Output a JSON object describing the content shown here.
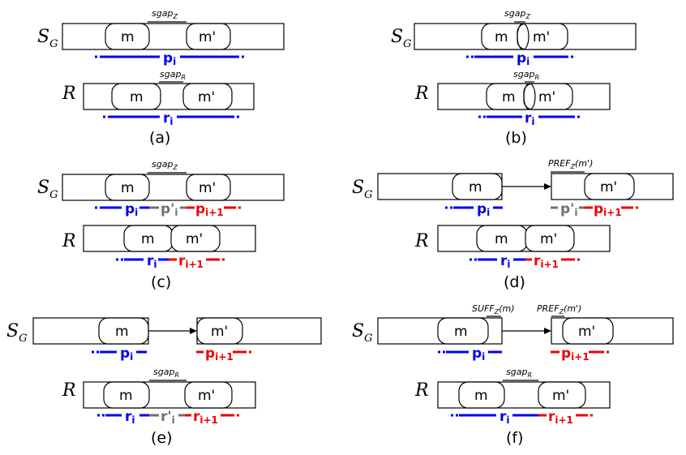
{
  "labels": {
    "sg_letter": "S",
    "sg_sub": "G",
    "r_label": "R",
    "seed_m": "m",
    "seed_mp": "m'",
    "sgap_z": "sgap",
    "sgap_z_sub": "Z",
    "sgap_r": "sgap",
    "sgap_r_sub": "R",
    "pref": "PREF",
    "pref_sub": "Z",
    "pref_arg": "(m')",
    "suff": "SUFF",
    "suff_sub": "Z",
    "suff_arg": "(m)"
  },
  "segments": {
    "p_i": "p",
    "p_i_sub": "i",
    "p_next": "p",
    "p_next_sub": "i+1",
    "p_prime": "p'",
    "p_prime_sub": "i",
    "r_i": "r",
    "r_i_sub": "i",
    "r_next": "r",
    "r_next_sub": "i+1",
    "r_prime": "r'",
    "r_prime_sub": "i"
  },
  "captions": [
    "(a)",
    "(b)",
    "(c)",
    "(d)",
    "(e)",
    "(f)"
  ]
}
